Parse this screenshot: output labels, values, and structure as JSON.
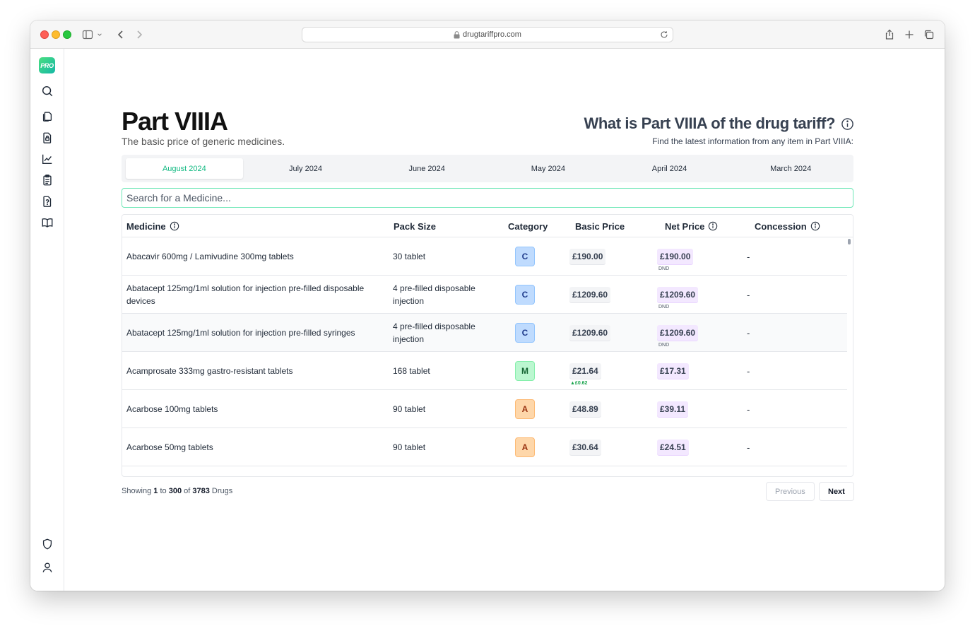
{
  "browser": {
    "url": "drugtariffpro.com"
  },
  "sidebar": {
    "logo_text": "PRO",
    "icons": [
      "search-icon",
      "documents-icon",
      "file-lock-icon",
      "chart-icon",
      "clipboard-icon",
      "help-file-icon",
      "book-icon",
      "shield-icon",
      "user-icon"
    ]
  },
  "page": {
    "title": "Part VIIIA",
    "subtitle": "The basic price of generic medicines.",
    "help_title": "What is Part VIIIA of the drug tariff?",
    "help_subtitle": "Find the latest information from any item in Part VIIIA:"
  },
  "tabs": [
    {
      "label": "August 2024",
      "active": true
    },
    {
      "label": "July 2024",
      "active": false
    },
    {
      "label": "June 2024",
      "active": false
    },
    {
      "label": "May 2024",
      "active": false
    },
    {
      "label": "April 2024",
      "active": false
    },
    {
      "label": "March 2024",
      "active": false
    }
  ],
  "search": {
    "placeholder": "Search for a Medicine..."
  },
  "table": {
    "headers": {
      "medicine": "Medicine",
      "pack_size": "Pack Size",
      "category": "Category",
      "basic_price": "Basic Price",
      "net_price": "Net Price",
      "concession": "Concession"
    },
    "rows": [
      {
        "medicine": "Abacavir 600mg / Lamivudine 300mg tablets",
        "pack_size": "30 tablet",
        "category": "C",
        "basic_price": "£190.00",
        "net_price": "£190.00",
        "net_note": "DND",
        "basic_note": "",
        "concession": "-"
      },
      {
        "medicine": "Abatacept 125mg/1ml solution for injection pre-filled disposable devices",
        "pack_size": "4 pre-filled disposable injection",
        "category": "C",
        "basic_price": "£1209.60",
        "net_price": "£1209.60",
        "net_note": "DND",
        "basic_note": "",
        "concession": "-"
      },
      {
        "medicine": "Abatacept 125mg/1ml solution for injection pre-filled syringes",
        "pack_size": "4 pre-filled disposable injection",
        "category": "C",
        "basic_price": "£1209.60",
        "net_price": "£1209.60",
        "net_note": "DND",
        "basic_note": "",
        "concession": "-"
      },
      {
        "medicine": "Acamprosate 333mg gastro-resistant tablets",
        "pack_size": "168 tablet",
        "category": "M",
        "basic_price": "£21.64",
        "net_price": "£17.31",
        "net_note": "",
        "basic_note": "▲£0.62",
        "concession": "-"
      },
      {
        "medicine": "Acarbose 100mg tablets",
        "pack_size": "90 tablet",
        "category": "A",
        "basic_price": "£48.89",
        "net_price": "£39.11",
        "net_note": "",
        "basic_note": "",
        "concession": "-"
      },
      {
        "medicine": "Acarbose 50mg tablets",
        "pack_size": "90 tablet",
        "category": "A",
        "basic_price": "£30.64",
        "net_price": "£24.51",
        "net_note": "",
        "basic_note": "",
        "concession": "-"
      }
    ]
  },
  "pagination": {
    "showing_label": "Showing",
    "from": "1",
    "to_label": "to",
    "to": "300",
    "of_label": "of",
    "total": "3783",
    "unit_label": "Drugs",
    "previous_label": "Previous",
    "next_label": "Next"
  }
}
